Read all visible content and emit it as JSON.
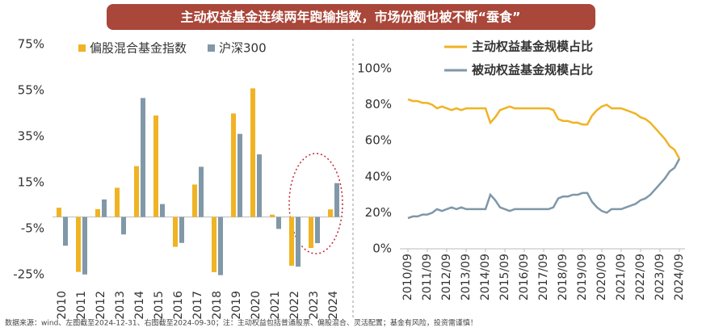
{
  "header": {
    "title": "主动权益基金连续两年跑输指数，市场份额也被不断“蚕食”"
  },
  "footnote": "数据来源：wind、左图截至2024-12-31、右图截至2024-09-30；注：主动权益包括普通股票、偏股混合、灵活配置；基金有风险，投资需谨慎！",
  "chart_data": [
    {
      "type": "bar",
      "categories": [
        "2010",
        "2011",
        "2012",
        "2013",
        "2014",
        "2015",
        "2016",
        "2017",
        "2018",
        "2019",
        "2020",
        "2021",
        "2022",
        "2023",
        "2024"
      ],
      "series": [
        {
          "name": "偏股混合基金指数",
          "color": "#f0b323",
          "values": [
            4,
            -23.9,
            3.4,
            12.7,
            22.1,
            44.1,
            -13,
            14.1,
            -24,
            45,
            55.9,
            1,
            -21.2,
            -13.5,
            3.3
          ]
        },
        {
          "name": "沪深300",
          "color": "#8198a8",
          "values": [
            -12.5,
            -25,
            7.6,
            -7.6,
            51.7,
            5.6,
            -11.3,
            21.8,
            -25.3,
            36.1,
            27.2,
            -5.2,
            -21.6,
            -11.4,
            14.7
          ]
        }
      ],
      "ylim": [
        -30,
        75
      ],
      "yticks": [
        {
          "value": -25,
          "label": "-25%"
        },
        {
          "value": -5,
          "label": "-5%"
        },
        {
          "value": 15,
          "label": "15%"
        },
        {
          "value": 35,
          "label": "35%"
        },
        {
          "value": 55,
          "label": "55%"
        },
        {
          "value": 75,
          "label": "75%"
        }
      ]
    },
    {
      "type": "line",
      "x": [
        "2010/09",
        null,
        null,
        null,
        "2011/09",
        null,
        null,
        null,
        "2012/09",
        null,
        null,
        null,
        "2013/09",
        null,
        null,
        null,
        "2014/09",
        null,
        null,
        null,
        "2015/09",
        null,
        null,
        null,
        "2016/09",
        null,
        null,
        null,
        "2017/09",
        null,
        null,
        null,
        "2018/09",
        null,
        null,
        null,
        "2019/09",
        null,
        null,
        null,
        "2020/09",
        null,
        null,
        null,
        "2021/09",
        null,
        null,
        null,
        "2022/09",
        null,
        null,
        null,
        "2023/09",
        null,
        null,
        null,
        "2024/09"
      ],
      "series": [
        {
          "name": "主动权益基金规模占比",
          "color": "#f0b323",
          "values": [
            83,
            82,
            82,
            81,
            81,
            80,
            78,
            79,
            78,
            77,
            78,
            77,
            78,
            78,
            78,
            78,
            78,
            70,
            73,
            77,
            78,
            79,
            78,
            78,
            78,
            78,
            78,
            78,
            78,
            78,
            77,
            72,
            71,
            71,
            70,
            70,
            69,
            69,
            74,
            77,
            79,
            80,
            78,
            78,
            78,
            77,
            76,
            75,
            73,
            72,
            70,
            67,
            64,
            61,
            57,
            55,
            50
          ]
        },
        {
          "name": "被动权益基金规模占比",
          "color": "#7f97a8",
          "values": [
            17,
            18,
            18,
            19,
            19,
            20,
            22,
            21,
            22,
            23,
            22,
            23,
            22,
            22,
            22,
            22,
            22,
            30,
            27,
            23,
            22,
            21,
            22,
            22,
            22,
            22,
            22,
            22,
            22,
            22,
            23,
            28,
            29,
            29,
            30,
            30,
            31,
            31,
            26,
            23,
            21,
            20,
            22,
            22,
            22,
            23,
            24,
            25,
            27,
            28,
            30,
            33,
            36,
            39,
            43,
            45,
            50
          ]
        }
      ],
      "ylim": [
        0,
        100
      ],
      "yticks": [
        {
          "value": 0,
          "label": "0%"
        },
        {
          "value": 20,
          "label": "20%"
        },
        {
          "value": 40,
          "label": "40%"
        },
        {
          "value": 60,
          "label": "60%"
        },
        {
          "value": 80,
          "label": "80%"
        },
        {
          "value": 100,
          "label": "100%"
        }
      ]
    }
  ]
}
